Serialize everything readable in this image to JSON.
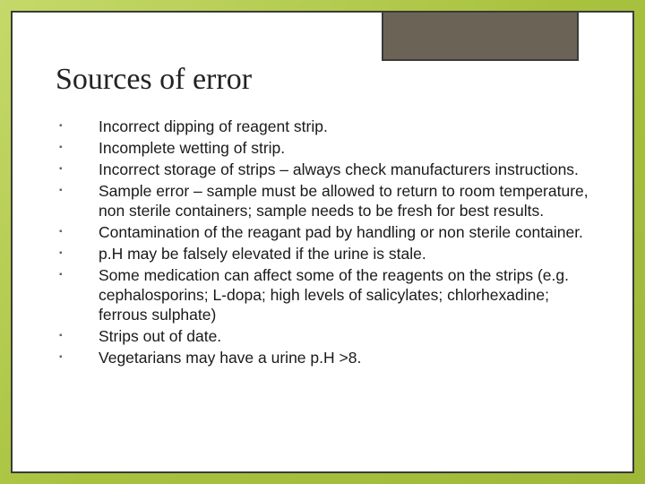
{
  "slide": {
    "title": "Sources of error",
    "title_fontsize": 34,
    "title_color": "#222222",
    "body_fontsize": 17.5,
    "body_color": "#1a1a1a",
    "bullet_color": "#666666",
    "background_gradient": [
      "#c5d96a",
      "#a8c23e",
      "#9fb83a"
    ],
    "frame_border_color": "#3a3a3a",
    "frame_background": "#ffffff",
    "corner_box_color": "#6b6456",
    "bullets": [
      "Incorrect dipping of reagent strip.",
      "Incomplete wetting of strip.",
      "Incorrect storage of strips – always check manufacturers instructions.",
      "Sample error – sample must be allowed to return to room temperature, non sterile containers; sample needs to be fresh for best results.",
      "Contamination of the reagant pad by handling or non sterile container.",
      "p.H may be falsely elevated if the urine is stale.",
      "Some medication can affect some of the reagents on the strips (e.g. cephalosporins; L-dopa; high levels of salicylates; chlorhexadine; ferrous sulphate)",
      "Strips out of date.",
      "Vegetarians may have a urine p.H >8."
    ]
  }
}
